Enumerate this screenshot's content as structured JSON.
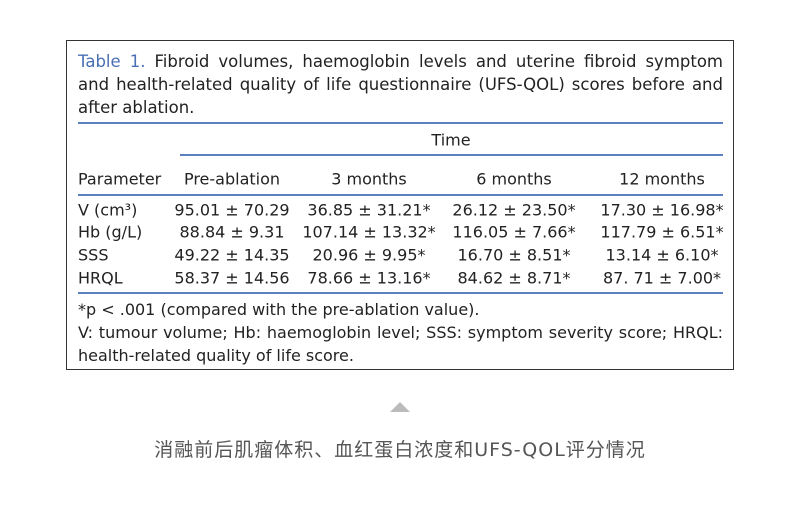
{
  "table": {
    "label": "Table 1.",
    "caption": "Fibroid volumes, haemoglobin levels and uterine fibroid symptom and health-related quality of life questionnaire (UFS-QOL) scores before and after ablation.",
    "group_header": "Time",
    "columns": [
      "Parameter",
      "Pre-ablation",
      "3 months",
      "6 months",
      "12 months"
    ],
    "rows": [
      [
        "V (cm³)",
        "95.01 ± 70.29",
        "36.85 ± 31.21*",
        "26.12 ± 23.50*",
        "17.30 ± 16.98*"
      ],
      [
        "Hb (g/L)",
        "88.84 ± 9.31",
        "107.14 ± 13.32*",
        "116.05 ± 7.66*",
        "117.79 ± 6.51*"
      ],
      [
        "SSS",
        "49.22 ± 14.35",
        "20.96 ± 9.95*",
        "16.70 ± 8.51*",
        "13.14 ± 6.10*"
      ],
      [
        "HRQL",
        "58.37 ± 14.56",
        "78.66 ± 13.16*",
        "84.62 ± 8.71*",
        "87. 71 ± 7.00*"
      ]
    ],
    "footnotes": [
      "*p < .001 (compared with the pre-ablation value).",
      "V: tumour volume; Hb: haemoglobin level; SSS: symptom severity score; HRQL: health-related quality of life score."
    ]
  },
  "figure_caption": "消融前后肌瘤体积、血红蛋白浓度和UFS-QOL评分情况"
}
